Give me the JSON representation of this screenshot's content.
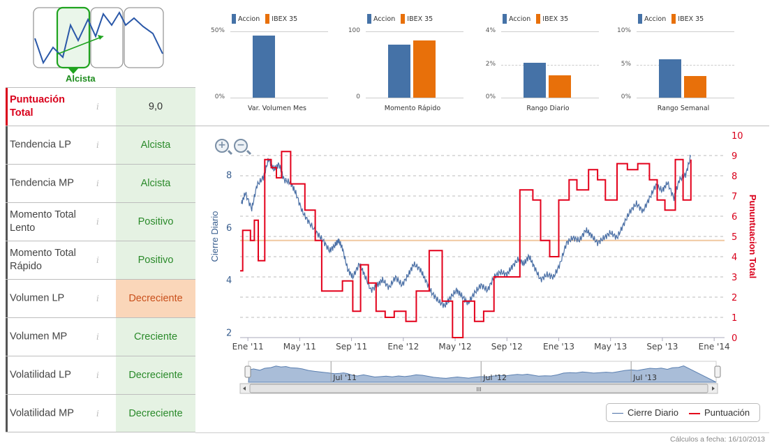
{
  "trend": {
    "selected_label": "Alcista"
  },
  "scores": [
    {
      "label": "Puntuación Total",
      "value": "9,0",
      "style": "gray",
      "total": true
    },
    {
      "label": "Tendencia LP",
      "value": "Alcista",
      "style": "green"
    },
    {
      "label": "Tendencia MP",
      "value": "Alcista",
      "style": "green"
    },
    {
      "label": "Momento Total Lento",
      "value": "Positivo",
      "style": "green"
    },
    {
      "label": "Momento Total Rápido",
      "value": "Positivo",
      "style": "green"
    },
    {
      "label": "Volumen LP",
      "value": "Decreciente",
      "style": "orange"
    },
    {
      "label": "Volumen MP",
      "value": "Creciente",
      "style": "green"
    },
    {
      "label": "Volatilidad LP",
      "value": "Decreciente",
      "style": "green"
    },
    {
      "label": "Volatilidad MP",
      "value": "Decreciente",
      "style": "green"
    }
  ],
  "info_glyph": "i",
  "colors": {
    "accion": "#4572a7",
    "ibex": "#e8700a",
    "cierre_line": "#4a6fa5",
    "puntuacion_line": "#e3001b",
    "ref_line": "#f0c8a0"
  },
  "mini_charts": [
    {
      "legend": [
        "Accion",
        "IBEX 35"
      ],
      "ymax_label": "50%",
      "ymid_label": "",
      "ymin_label": "0%",
      "ymax": 50,
      "values": [
        47,
        null
      ],
      "caption": "Var. Volumen Mes"
    },
    {
      "legend": [
        "Accion",
        "IBEX 35"
      ],
      "ymax_label": "100",
      "ymid_label": "",
      "ymin_label": "0",
      "ymax": 100,
      "values": [
        80,
        86
      ],
      "caption": "Momento Rápido"
    },
    {
      "legend": [
        "Accion",
        "IBEX 35"
      ],
      "ymax_label": "4%",
      "ymid_label": "2%",
      "ymin_label": "0%",
      "ymax": 4,
      "values": [
        2.1,
        1.35
      ],
      "caption": "Rango Diario"
    },
    {
      "legend": [
        "Accion",
        "IBEX 35"
      ],
      "ymax_label": "10%",
      "ymid_label": "5%",
      "ymin_label": "0%",
      "ymax": 10,
      "values": [
        5.8,
        3.3
      ],
      "caption": "Rango Semanal"
    }
  ],
  "chart_data": {
    "type": "line",
    "y_left_label": "Cierre Diario",
    "y_right_label": "Pununtuacion Total",
    "y_left_ticks": [
      "2",
      "4",
      "6",
      "8"
    ],
    "y_left_range": [
      1.8,
      9.5
    ],
    "y_right_ticks": [
      "0",
      "1",
      "2",
      "3",
      "4",
      "5",
      "6",
      "7",
      "8",
      "9",
      "10"
    ],
    "y_right_range": [
      0,
      10
    ],
    "x_ticks": [
      "Ene '11",
      "May '11",
      "Sep '11",
      "Ene '12",
      "May '12",
      "Sep '12",
      "Ene '13",
      "May '13",
      "Sep '13",
      "Ene '14"
    ],
    "x_range_months": [
      -0.6,
      36.8
    ],
    "reference_value_right": 4.8,
    "navigator_labels": [
      "Jul '11",
      "Jul '12",
      "Jul '13"
    ],
    "scroll_glyph": "III",
    "series": [
      {
        "name": "Cierre Diario",
        "points": [
          [
            -0.5,
            6.9
          ],
          [
            -0.2,
            7.3
          ],
          [
            0.3,
            6.7
          ],
          [
            0.7,
            7.6
          ],
          [
            1.2,
            7.9
          ],
          [
            1.6,
            8.6
          ],
          [
            2.0,
            8.2
          ],
          [
            2.4,
            8.4
          ],
          [
            2.8,
            7.8
          ],
          [
            3.3,
            7.7
          ],
          [
            3.7,
            7.3
          ],
          [
            4.2,
            6.6
          ],
          [
            4.7,
            6.2
          ],
          [
            5.3,
            5.8
          ],
          [
            5.8,
            5.5
          ],
          [
            6.3,
            5.1
          ],
          [
            6.7,
            5.3
          ],
          [
            7.0,
            5.5
          ],
          [
            7.3,
            5.2
          ],
          [
            7.7,
            4.4
          ],
          [
            8.1,
            4.1
          ],
          [
            8.6,
            4.6
          ],
          [
            9.0,
            4.2
          ],
          [
            9.5,
            3.6
          ],
          [
            10.0,
            3.8
          ],
          [
            10.4,
            4.0
          ],
          [
            10.9,
            3.7
          ],
          [
            11.4,
            4.1
          ],
          [
            11.9,
            3.8
          ],
          [
            12.4,
            4.2
          ],
          [
            12.8,
            4.6
          ],
          [
            13.3,
            4.4
          ],
          [
            13.7,
            4.0
          ],
          [
            14.2,
            3.5
          ],
          [
            14.7,
            3.2
          ],
          [
            15.2,
            3.0
          ],
          [
            15.6,
            3.3
          ],
          [
            16.1,
            3.6
          ],
          [
            16.5,
            3.4
          ],
          [
            17.0,
            3.1
          ],
          [
            17.5,
            3.5
          ],
          [
            18.0,
            3.8
          ],
          [
            18.5,
            3.6
          ],
          [
            19.0,
            4.1
          ],
          [
            19.5,
            4.3
          ],
          [
            20.0,
            4.2
          ],
          [
            20.4,
            4.5
          ],
          [
            20.9,
            4.8
          ],
          [
            21.3,
            4.6
          ],
          [
            21.7,
            4.9
          ],
          [
            22.1,
            4.5
          ],
          [
            22.6,
            4.0
          ],
          [
            23.1,
            4.2
          ],
          [
            23.6,
            4.1
          ],
          [
            24.1,
            4.6
          ],
          [
            24.6,
            5.4
          ],
          [
            25.1,
            5.6
          ],
          [
            25.6,
            5.5
          ],
          [
            26.1,
            5.9
          ],
          [
            26.5,
            5.7
          ],
          [
            27.0,
            5.4
          ],
          [
            27.5,
            5.6
          ],
          [
            28.0,
            5.8
          ],
          [
            28.5,
            5.6
          ],
          [
            29.0,
            6.1
          ],
          [
            29.5,
            6.6
          ],
          [
            30.0,
            6.9
          ],
          [
            30.5,
            6.6
          ],
          [
            31.0,
            7.1
          ],
          [
            31.5,
            7.6
          ],
          [
            32.0,
            7.4
          ],
          [
            32.4,
            7.7
          ],
          [
            32.9,
            7.1
          ],
          [
            33.3,
            7.8
          ],
          [
            33.8,
            8.0
          ],
          [
            34.2,
            8.7
          ]
        ]
      },
      {
        "name": "Puntuación",
        "points": [
          [
            -0.6,
            3.3
          ],
          [
            -0.4,
            5.3
          ],
          [
            0.2,
            4.8
          ],
          [
            0.5,
            5.8
          ],
          [
            0.8,
            3.8
          ],
          [
            1.3,
            8.8
          ],
          [
            1.8,
            8.4
          ],
          [
            2.2,
            7.9
          ],
          [
            2.6,
            9.2
          ],
          [
            3.3,
            7.6
          ],
          [
            4.4,
            6.3
          ],
          [
            5.2,
            4.8
          ],
          [
            5.7,
            2.3
          ],
          [
            6.4,
            2.3
          ],
          [
            7.3,
            2.8
          ],
          [
            8.1,
            1.3
          ],
          [
            8.7,
            3.6
          ],
          [
            9.3,
            2.7
          ],
          [
            9.9,
            1.3
          ],
          [
            10.6,
            1.0
          ],
          [
            11.3,
            1.3
          ],
          [
            12.2,
            0.8
          ],
          [
            13.0,
            2.3
          ],
          [
            14.0,
            4.3
          ],
          [
            15.0,
            1.8
          ],
          [
            15.8,
            0.0
          ],
          [
            16.6,
            1.8
          ],
          [
            17.5,
            0.8
          ],
          [
            18.2,
            1.3
          ],
          [
            19.0,
            3.0
          ],
          [
            20.2,
            3.0
          ],
          [
            21.0,
            7.3
          ],
          [
            22.0,
            6.8
          ],
          [
            22.6,
            4.8
          ],
          [
            23.3,
            4.0
          ],
          [
            24.0,
            6.8
          ],
          [
            24.8,
            7.8
          ],
          [
            25.4,
            7.3
          ],
          [
            26.3,
            8.3
          ],
          [
            27.0,
            7.8
          ],
          [
            27.6,
            6.8
          ],
          [
            28.5,
            8.6
          ],
          [
            29.3,
            8.3
          ],
          [
            30.1,
            8.6
          ],
          [
            31.0,
            7.8
          ],
          [
            31.6,
            6.8
          ],
          [
            32.2,
            6.3
          ],
          [
            33.0,
            8.8
          ],
          [
            33.6,
            6.8
          ],
          [
            34.2,
            8.8
          ]
        ]
      }
    ],
    "legend": [
      "Cierre Diario",
      "Puntuación"
    ]
  },
  "footer": {
    "text": "Cálculos a fecha: 16/10/2013"
  }
}
